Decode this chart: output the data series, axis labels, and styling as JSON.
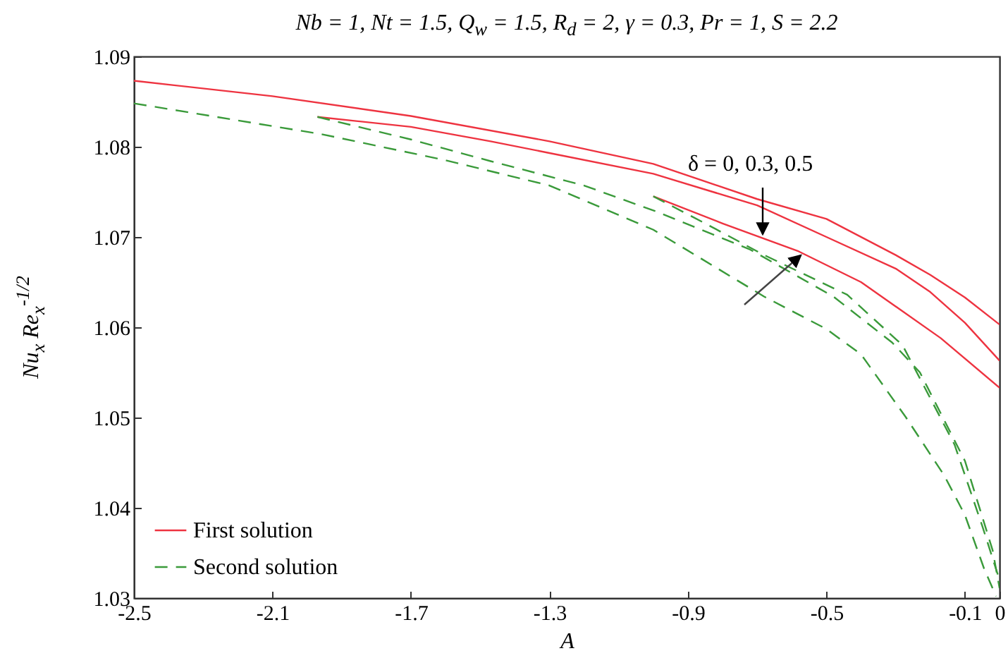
{
  "chart_data": {
    "type": "line",
    "title": "Nb = 1, Nt = 1.5, Q$_{w}$ = 1.5, R$_{d}$ = 2, γ = 0.3, Pr = 1, S = 2.2",
    "xlabel": "A",
    "ylabel": "Nu$_{x}$ Re$_{x}$$^{-1/2}$",
    "annotations": [
      "δ = 0, 0.3, 0.5"
    ],
    "xlim": [
      -2.5,
      0
    ],
    "xticks": [
      -2.5,
      -2.1,
      -1.7,
      -1.3,
      -0.9,
      -0.5,
      -0.1,
      0
    ],
    "ylim": [
      1.03,
      1.09
    ],
    "yticks": [
      1.03,
      1.04,
      1.05,
      1.06,
      1.07,
      1.08,
      1.09
    ],
    "grid": false,
    "legend": "bottom left",
    "marker": "none",
    "series": [
      {
        "name": "First solution",
        "color": "#ee3340",
        "line_style": "solid",
        "x": [
          -2.5,
          -2.1,
          -1.7,
          -1.3,
          -1.0,
          -0.7,
          -0.5,
          -0.3,
          -0.2,
          -0.1,
          0
        ],
        "values": [
          1.0873,
          1.0856,
          1.0834,
          1.0806,
          1.0781,
          1.0742,
          1.072,
          1.068,
          1.0658,
          1.0633,
          1.0603
        ]
      },
      {
        "color": "#ee3340",
        "line_style": "solid",
        "x": [
          -1.97,
          -1.7,
          -1.47,
          -1.3,
          -1.0,
          -0.7,
          -0.5,
          -0.3,
          -0.2,
          -0.1,
          0
        ],
        "values": [
          1.0833,
          1.0822,
          1.0806,
          1.0793,
          1.077,
          1.0735,
          1.07,
          1.0665,
          1.0639,
          1.0605,
          1.0563
        ]
      },
      {
        "color": "#ee3340",
        "line_style": "solid",
        "x": [
          -1.0,
          -0.8,
          -0.58,
          -0.4,
          -0.17,
          0
        ],
        "values": [
          1.0745,
          1.0715,
          1.0684,
          1.065,
          1.0588,
          1.0533
        ]
      },
      {
        "name": "Second solution",
        "color": "#3a9a3a",
        "line_style": "dashed",
        "x": [
          -2.5,
          -1.96,
          -1.6,
          -1.3,
          -1.0,
          -0.68,
          -0.5,
          -0.4,
          -0.27,
          -0.16,
          -0.1,
          -0.045,
          -0.01
        ],
        "values": [
          1.0848,
          1.0814,
          1.0785,
          1.0757,
          1.0708,
          1.0634,
          1.0598,
          1.057,
          1.05,
          1.0436,
          1.0392,
          1.0333,
          1.0302
        ]
      },
      {
        "color": "#3a9a3a",
        "line_style": "dashed",
        "x": [
          -1.97,
          -1.7,
          -1.47,
          -1.2,
          -0.99,
          -0.72,
          -0.48,
          -0.31,
          -0.23,
          -0.1,
          -0.02,
          0
        ],
        "values": [
          1.0833,
          1.0808,
          1.0784,
          1.0757,
          1.0728,
          1.0686,
          1.0634,
          1.0583,
          1.055,
          1.0452,
          1.0353,
          1.0311
        ]
      },
      {
        "color": "#3a9a3a",
        "line_style": "dashed",
        "x": [
          -1.0,
          -0.85,
          -0.68,
          -0.44,
          -0.28,
          -0.13,
          -0.05,
          0
        ],
        "values": [
          1.0745,
          1.0715,
          1.068,
          1.0636,
          1.058,
          1.047,
          1.038,
          1.032
        ]
      }
    ]
  }
}
